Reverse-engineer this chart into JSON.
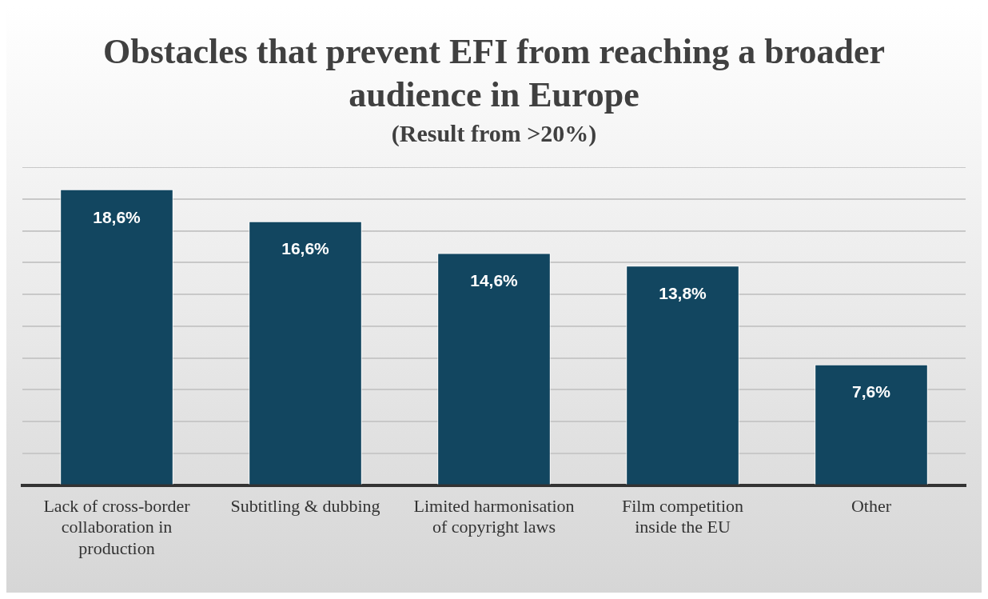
{
  "chart_data": {
    "type": "bar",
    "title": "Obstacles that prevent EFI from reaching a broader audience in Europe",
    "subtitle": "(Result from >20%)",
    "categories": [
      "Lack of cross-border collaboration in production",
      "Subtitling & dubbing",
      "Limited harmonisation of copyright laws",
      "Film competition inside the EU",
      "Other"
    ],
    "values": [
      18.6,
      16.6,
      14.6,
      13.8,
      7.6
    ],
    "value_labels": [
      "18,6%",
      "16,6%",
      "14,6%",
      "13,8%",
      "7,6%"
    ],
    "color": "#124660",
    "ylim": [
      0,
      20
    ],
    "yticks": [
      {
        "value": 0,
        "label": null
      },
      {
        "value": 2,
        "label": null
      },
      {
        "value": 4,
        "label": null
      },
      {
        "value": 6,
        "label": null
      },
      {
        "value": 8,
        "label": null
      },
      {
        "value": 10,
        "label": null
      },
      {
        "value": 12,
        "label": null
      },
      {
        "value": 14,
        "label": null
      },
      {
        "value": 16,
        "label": null
      },
      {
        "value": 18,
        "label": null
      },
      {
        "value": 20,
        "label": null
      }
    ],
    "grid": "y",
    "tick_labels": "x",
    "legend": false
  }
}
